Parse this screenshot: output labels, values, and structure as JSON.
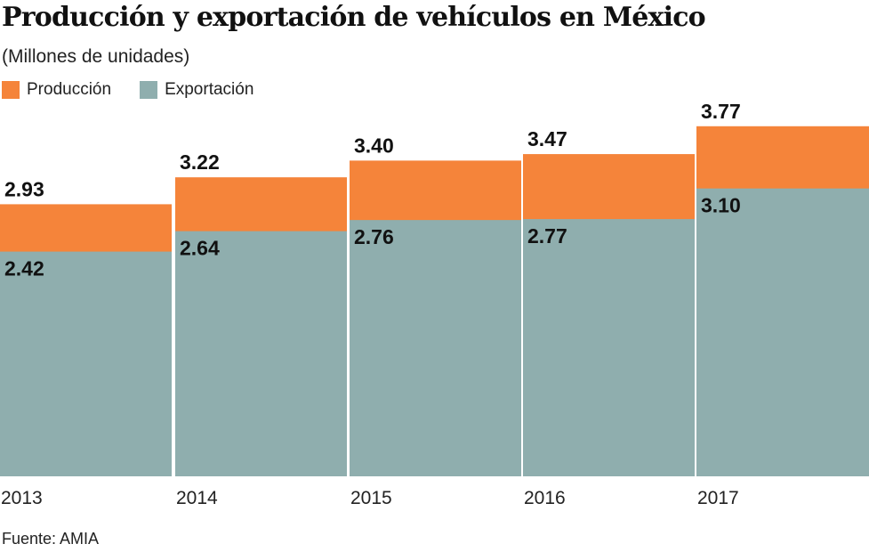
{
  "chart_data": {
    "type": "bar",
    "stacked": "overlay",
    "title": "Producción y exportación de vehículos en México",
    "subtitle": "(Millones de unidades)",
    "categories": [
      "2013",
      "2014",
      "2015",
      "2016",
      "2017"
    ],
    "series": [
      {
        "name": "Producción",
        "values": [
          2.93,
          3.22,
          3.4,
          3.47,
          3.77
        ],
        "color": "#F5843A"
      },
      {
        "name": "Exportación",
        "values": [
          2.42,
          2.64,
          2.76,
          2.77,
          3.1
        ],
        "color": "#8FAEAE"
      }
    ],
    "ylim": [
      0,
      3.77
    ],
    "grid": false,
    "legend": "top-left",
    "source": "Fuente: AMIA"
  }
}
